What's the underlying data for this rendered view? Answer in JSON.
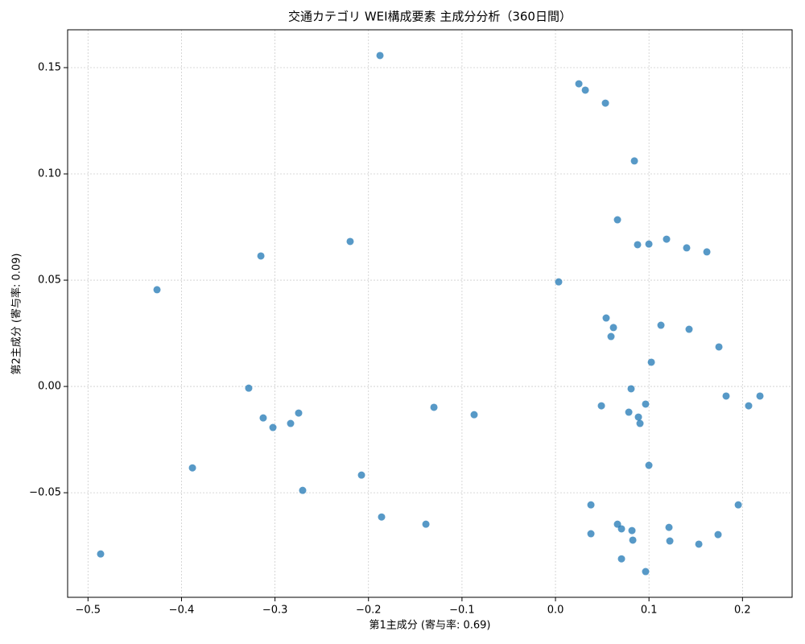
{
  "chart_data": {
    "type": "scatter",
    "title": "交通カテゴリ WEI構成要素 主成分分析（360日間）",
    "xlabel": "第1主成分 (寄与率: 0.69)",
    "ylabel": "第2主成分 (寄与率: 0.09)",
    "color": "#1f77b4",
    "grid": true,
    "xlim": [
      -0.5218,
      0.2531
    ],
    "ylim": [
      -0.0992,
      0.1678
    ],
    "xticks": [
      {
        "value": -0.5,
        "label": "−0.5"
      },
      {
        "value": -0.4,
        "label": "−0.4"
      },
      {
        "value": -0.3,
        "label": "−0.3"
      },
      {
        "value": -0.2,
        "label": "−0.2"
      },
      {
        "value": -0.1,
        "label": "−0.1"
      },
      {
        "value": 0,
        "label": "0.0"
      },
      0.1,
      0.2
    ],
    "yticks": [
      {
        "value": -0.05,
        "label": "−0.05"
      },
      {
        "value": 0,
        "label": "0.00"
      },
      0.05,
      {
        "value": 0.1,
        "label": "0.10"
      },
      0.15
    ],
    "x": [
      -0.1877,
      0.025,
      0.0319,
      0.0534,
      0.0844,
      0.0663,
      0.0878,
      0.0999,
      0.1188,
      0.1403,
      0.1619,
      -0.2196,
      -0.3151,
      -0.4262,
      0.0034,
      0.0542,
      0.062,
      0.0594,
      0.1128,
      0.1429,
      0.1748,
      0.1025,
      -0.3281,
      0.0809,
      0.0964,
      0.0491,
      0.1825,
      0.2066,
      0.2187,
      0.0784,
      0.0887,
      0.0904,
      -0.13,
      -0.087,
      -0.3126,
      -0.2747,
      -0.2833,
      -0.3022,
      -0.3883,
      -0.2075,
      -0.2704,
      0.0999,
      0.0379,
      0.1955,
      -0.186,
      -0.1386,
      0.0663,
      0.0706,
      0.0818,
      0.1214,
      0.0379,
      0.1739,
      0.0827,
      0.1223,
      0.1533,
      -0.4865,
      0.0706,
      0.0964
    ],
    "values": [
      0.1557,
      0.1424,
      0.1394,
      0.1333,
      0.1061,
      0.0784,
      0.0667,
      0.067,
      0.0693,
      0.0652,
      0.0633,
      0.0682,
      0.0614,
      0.0455,
      0.0492,
      0.0322,
      0.0277,
      0.0235,
      0.0288,
      0.0269,
      0.0186,
      0.0114,
      -0.0008,
      -0.0011,
      -0.0083,
      -0.0091,
      -0.0045,
      -0.0091,
      -0.0045,
      -0.0121,
      -0.0144,
      -0.0174,
      -0.0098,
      -0.0133,
      -0.0148,
      -0.0125,
      -0.0174,
      -0.0193,
      -0.0383,
      -0.0417,
      -0.0489,
      -0.0371,
      -0.0557,
      -0.0557,
      -0.0614,
      -0.0648,
      -0.0648,
      -0.067,
      -0.0678,
      -0.0663,
      -0.0693,
      -0.0697,
      -0.0723,
      -0.0727,
      -0.0742,
      -0.0788,
      -0.0811,
      -0.0871
    ]
  }
}
